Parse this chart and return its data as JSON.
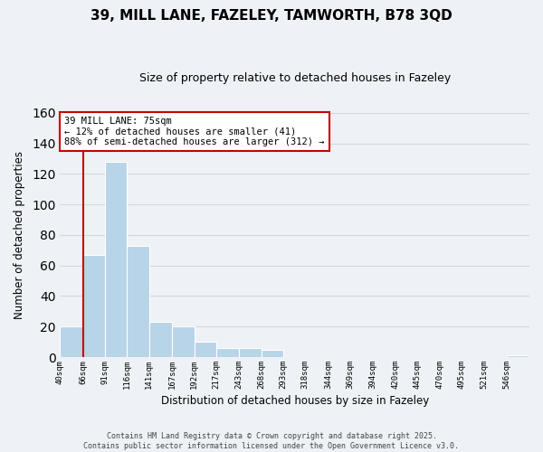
{
  "title": "39, MILL LANE, FAZELEY, TAMWORTH, B78 3QD",
  "subtitle": "Size of property relative to detached houses in Fazeley",
  "xlabel": "Distribution of detached houses by size in Fazeley",
  "ylabel": "Number of detached properties",
  "bar_values": [
    20,
    67,
    128,
    73,
    23,
    20,
    10,
    6,
    6,
    5,
    0,
    0,
    0,
    0,
    0,
    0,
    0,
    0,
    0,
    0,
    1
  ],
  "bin_edges": [
    40,
    66,
    91,
    116,
    141,
    167,
    192,
    217,
    243,
    268,
    293,
    318,
    344,
    369,
    394,
    420,
    445,
    470,
    495,
    521,
    546
  ],
  "bin_width": 25,
  "tick_labels": [
    "40sqm",
    "66sqm",
    "91sqm",
    "116sqm",
    "141sqm",
    "167sqm",
    "192sqm",
    "217sqm",
    "243sqm",
    "268sqm",
    "293sqm",
    "318sqm",
    "344sqm",
    "369sqm",
    "394sqm",
    "420sqm",
    "445sqm",
    "470sqm",
    "495sqm",
    "521sqm",
    "546sqm"
  ],
  "bar_color": "#b8d4e8",
  "grid_color": "#d0d8e0",
  "vline_color": "#cc0000",
  "annotation_line1": "39 MILL LANE: 75sqm",
  "annotation_line2": "← 12% of detached houses are smaller (41)",
  "annotation_line3": "88% of semi-detached houses are larger (312) →",
  "annotation_box_color": "#ffffff",
  "annotation_box_edge": "#cc0000",
  "ylim": [
    0,
    160
  ],
  "yticks": [
    0,
    20,
    40,
    60,
    80,
    100,
    120,
    140,
    160
  ],
  "footer_line1": "Contains HM Land Registry data © Crown copyright and database right 2025.",
  "footer_line2": "Contains public sector information licensed under the Open Government Licence v3.0.",
  "background_color": "#eef2f7",
  "plot_bg_color": "#eef2f7"
}
